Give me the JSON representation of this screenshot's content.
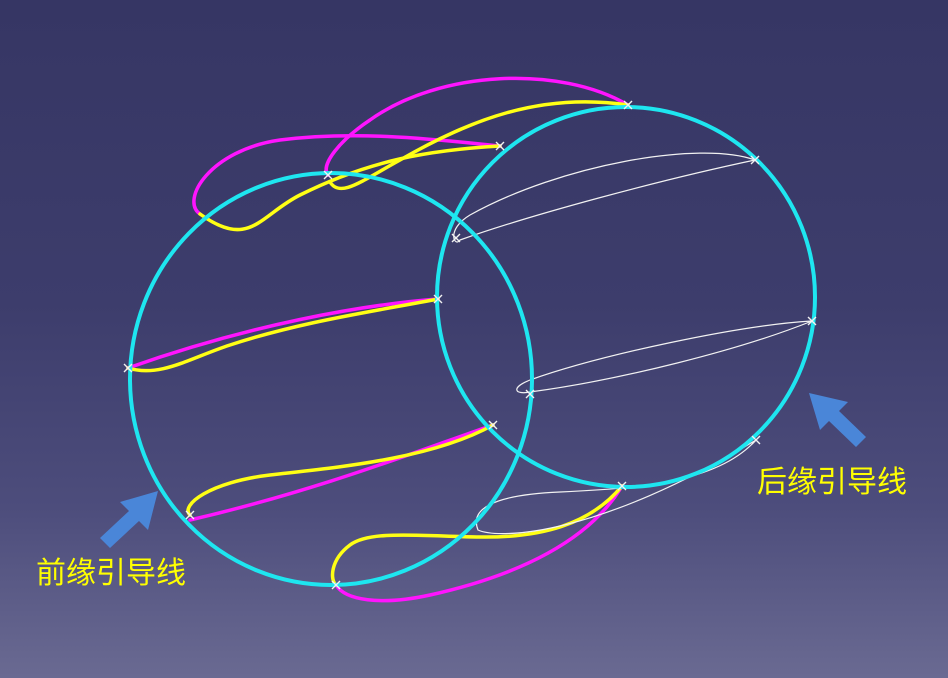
{
  "colors": {
    "background_top": "#363664",
    "background_bottom": "#6a6a92",
    "circle": "#1ee6f0",
    "yellow_guide": "#ffff14",
    "magenta_guide": "#ff14ff",
    "airfoil_outline": "#f2f2f2",
    "arrow": "#4a86d8",
    "label_text": "#ffff00"
  },
  "labels": {
    "leading_edge": "前缘引导线",
    "trailing_edge": "后缘引导线"
  },
  "icons": {
    "leading_arrow": "arrow-up-right-icon",
    "trailing_arrow": "arrow-up-left-icon"
  }
}
